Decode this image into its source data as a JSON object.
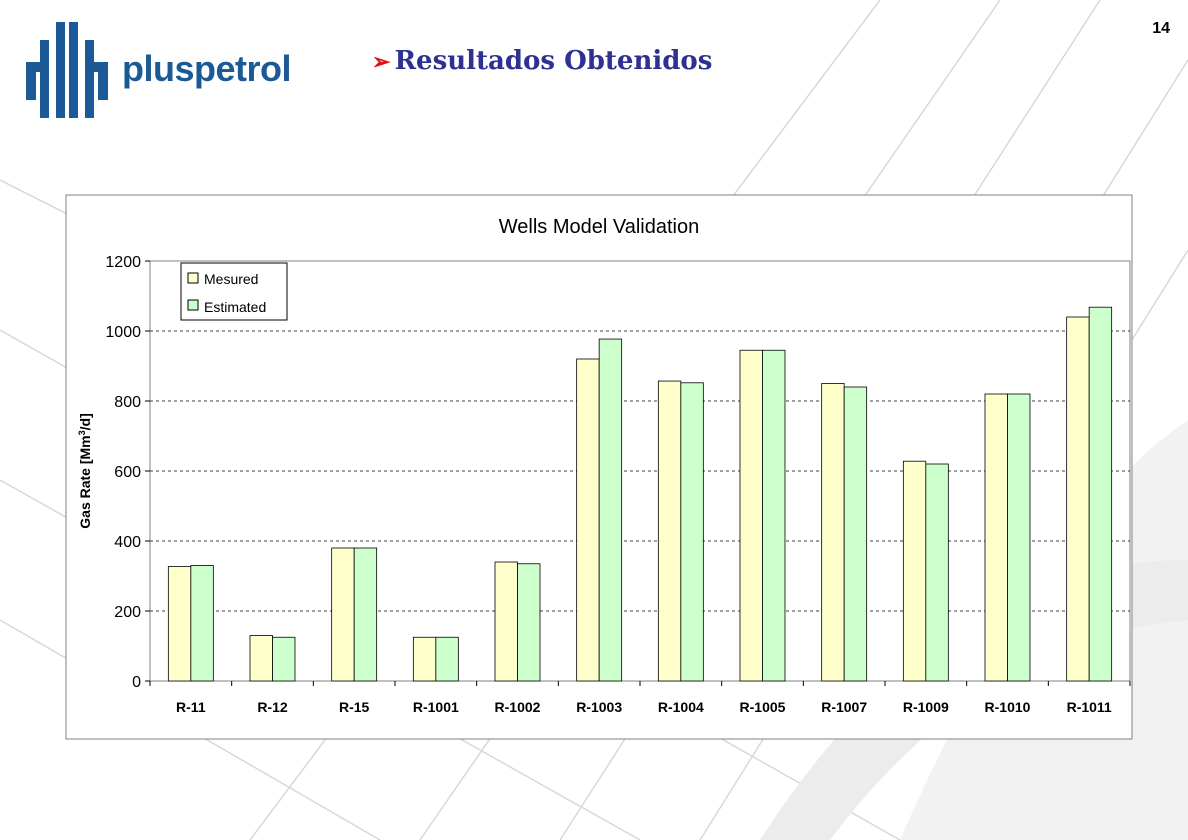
{
  "logo": {
    "text": "pluspetrol"
  },
  "slide": {
    "title": "Resultados Obtenidos",
    "bullet_icon": "arrow-right-icon",
    "page_number": "14"
  },
  "colors": {
    "measured": "#ffffcc",
    "estimated": "#ccffcc",
    "title": "#2e3192",
    "logo": "#1b5a96",
    "bullet": "#e01010"
  },
  "chart_data": {
    "type": "bar",
    "title": "Wells Model Validation",
    "xlabel": "",
    "ylabel": "Gas Rate [Mm3/d]",
    "ylabel_parts": {
      "main": "Gas Rate [Mm",
      "sup": "3",
      "tail": "/d]"
    },
    "ylim": [
      0,
      1200
    ],
    "yticks": [
      0,
      200,
      400,
      600,
      800,
      1000,
      1200
    ],
    "grid": true,
    "legend_position": "top-left",
    "categories": [
      "R-11",
      "R-12",
      "R-15",
      "R-1001",
      "R-1002",
      "R-1003",
      "R-1004",
      "R-1005",
      "R-1007",
      "R-1009",
      "R-1010",
      "R-1011"
    ],
    "series": [
      {
        "name": "Mesured",
        "color": "#ffffcc",
        "values": [
          327,
          130,
          380,
          125,
          340,
          920,
          857,
          945,
          850,
          628,
          820,
          1040
        ]
      },
      {
        "name": "Estimated",
        "color": "#ccffcc",
        "values": [
          330,
          125,
          380,
          125,
          335,
          977,
          852,
          945,
          840,
          620,
          820,
          1068
        ]
      }
    ]
  }
}
